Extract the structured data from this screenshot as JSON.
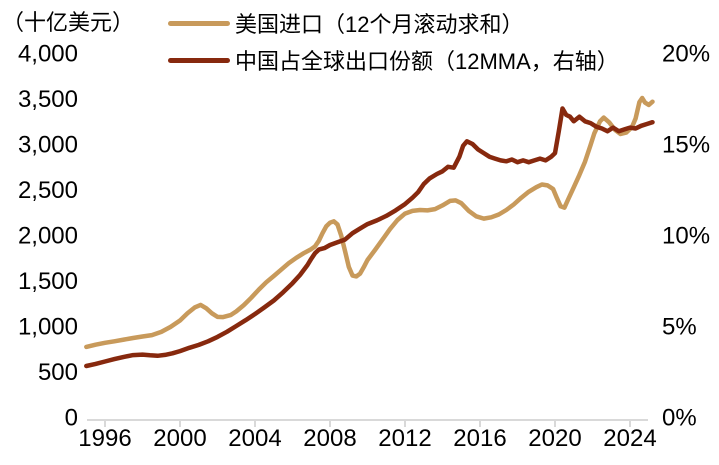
{
  "chart_data": {
    "type": "line",
    "unit_label": "（十亿美元）",
    "legend_position": "top-left",
    "grid": false,
    "x_axis": {
      "range": [
        1995,
        2025.3
      ],
      "tick_values": [
        1996,
        2000,
        2004,
        2008,
        2012,
        2016,
        2020,
        2024
      ],
      "tick_labels": [
        "1996",
        "2000",
        "2004",
        "2008",
        "2012",
        "2016",
        "2020",
        "2024"
      ]
    },
    "left_axis": {
      "range": [
        0,
        4000
      ],
      "tick_values": [
        0,
        500,
        1000,
        1500,
        2000,
        2500,
        3000,
        3500,
        4000
      ],
      "tick_labels": [
        "0",
        "500",
        "1,000",
        "1,500",
        "2,000",
        "2,500",
        "3,000",
        "3,500",
        "4,000"
      ]
    },
    "right_axis": {
      "range": [
        0,
        20
      ],
      "tick_values": [
        0,
        5,
        10,
        15,
        20
      ],
      "tick_labels": [
        "0%",
        "5%",
        "10%",
        "15%",
        "20%"
      ]
    },
    "colors": {
      "us_imports_line": "#C89A5B",
      "china_share_line": "#87290E",
      "axis_line": "#D9D9D9",
      "text": "#000000"
    },
    "series": [
      {
        "name": "美国进口（12个月滚动求和）",
        "axis": "left",
        "color_key": "us_imports_line",
        "points": [
          [
            1995,
            770
          ],
          [
            1995.5,
            795
          ],
          [
            1996,
            815
          ],
          [
            1996.5,
            832
          ],
          [
            1997,
            850
          ],
          [
            1997.5,
            868
          ],
          [
            1998,
            885
          ],
          [
            1998.5,
            900
          ],
          [
            1999,
            935
          ],
          [
            1999.5,
            990
          ],
          [
            2000,
            1060
          ],
          [
            2000.4,
            1140
          ],
          [
            2000.8,
            1205
          ],
          [
            2001.1,
            1232
          ],
          [
            2001.4,
            1195
          ],
          [
            2001.7,
            1140
          ],
          [
            2002,
            1100
          ],
          [
            2002.3,
            1098
          ],
          [
            2002.7,
            1120
          ],
          [
            2003,
            1160
          ],
          [
            2003.4,
            1230
          ],
          [
            2003.8,
            1310
          ],
          [
            2004.2,
            1400
          ],
          [
            2004.6,
            1480
          ],
          [
            2005,
            1550
          ],
          [
            2005.4,
            1620
          ],
          [
            2005.8,
            1690
          ],
          [
            2006.2,
            1750
          ],
          [
            2006.6,
            1800
          ],
          [
            2007,
            1845
          ],
          [
            2007.2,
            1875
          ],
          [
            2007.4,
            1935
          ],
          [
            2007.6,
            2020
          ],
          [
            2007.8,
            2095
          ],
          [
            2008,
            2135
          ],
          [
            2008.2,
            2150
          ],
          [
            2008.4,
            2115
          ],
          [
            2008.6,
            1995
          ],
          [
            2008.8,
            1825
          ],
          [
            2009,
            1650
          ],
          [
            2009.2,
            1555
          ],
          [
            2009.4,
            1545
          ],
          [
            2009.6,
            1575
          ],
          [
            2009.8,
            1645
          ],
          [
            2010,
            1725
          ],
          [
            2010.4,
            1835
          ],
          [
            2010.8,
            1950
          ],
          [
            2011.2,
            2065
          ],
          [
            2011.6,
            2165
          ],
          [
            2012,
            2235
          ],
          [
            2012.4,
            2265
          ],
          [
            2012.8,
            2275
          ],
          [
            2013.2,
            2270
          ],
          [
            2013.6,
            2285
          ],
          [
            2014,
            2325
          ],
          [
            2014.4,
            2375
          ],
          [
            2014.7,
            2380
          ],
          [
            2015,
            2350
          ],
          [
            2015.4,
            2265
          ],
          [
            2015.8,
            2205
          ],
          [
            2016.2,
            2180
          ],
          [
            2016.6,
            2195
          ],
          [
            2017,
            2225
          ],
          [
            2017.4,
            2275
          ],
          [
            2017.8,
            2335
          ],
          [
            2018.2,
            2410
          ],
          [
            2018.6,
            2475
          ],
          [
            2019,
            2525
          ],
          [
            2019.3,
            2555
          ],
          [
            2019.6,
            2545
          ],
          [
            2019.9,
            2505
          ],
          [
            2020.1,
            2405
          ],
          [
            2020.3,
            2315
          ],
          [
            2020.5,
            2300
          ],
          [
            2020.7,
            2390
          ],
          [
            2021,
            2525
          ],
          [
            2021.3,
            2660
          ],
          [
            2021.6,
            2805
          ],
          [
            2021.9,
            2990
          ],
          [
            2022.1,
            3120
          ],
          [
            2022.4,
            3250
          ],
          [
            2022.6,
            3290
          ],
          [
            2022.9,
            3235
          ],
          [
            2023.2,
            3155
          ],
          [
            2023.5,
            3110
          ],
          [
            2023.8,
            3125
          ],
          [
            2024.1,
            3185
          ],
          [
            2024.3,
            3280
          ],
          [
            2024.5,
            3460
          ],
          [
            2024.65,
            3505
          ],
          [
            2024.8,
            3455
          ],
          [
            2025,
            3430
          ],
          [
            2025.2,
            3465
          ]
        ]
      },
      {
        "name": "中国占全球出口份额（12MMA，右轴）",
        "axis": "right",
        "color_key": "china_share_line",
        "points": [
          [
            1995,
            2.8
          ],
          [
            1995.5,
            2.92
          ],
          [
            1996,
            3.05
          ],
          [
            1996.5,
            3.18
          ],
          [
            1997,
            3.3
          ],
          [
            1997.5,
            3.4
          ],
          [
            1998,
            3.43
          ],
          [
            1998.4,
            3.39
          ],
          [
            1998.8,
            3.36
          ],
          [
            1999.2,
            3.41
          ],
          [
            1999.6,
            3.5
          ],
          [
            2000,
            3.62
          ],
          [
            2000.5,
            3.8
          ],
          [
            2001,
            3.96
          ],
          [
            2001.5,
            4.16
          ],
          [
            2002,
            4.4
          ],
          [
            2002.5,
            4.68
          ],
          [
            2003,
            5.0
          ],
          [
            2003.5,
            5.32
          ],
          [
            2004,
            5.66
          ],
          [
            2004.5,
            6.02
          ],
          [
            2005,
            6.4
          ],
          [
            2005.5,
            6.85
          ],
          [
            2006,
            7.35
          ],
          [
            2006.4,
            7.8
          ],
          [
            2006.8,
            8.35
          ],
          [
            2007,
            8.7
          ],
          [
            2007.2,
            9.0
          ],
          [
            2007.4,
            9.2
          ],
          [
            2007.7,
            9.28
          ],
          [
            2008,
            9.45
          ],
          [
            2008.4,
            9.6
          ],
          [
            2008.8,
            9.75
          ],
          [
            2009.2,
            10.1
          ],
          [
            2009.6,
            10.35
          ],
          [
            2010,
            10.6
          ],
          [
            2010.5,
            10.8
          ],
          [
            2011,
            11.05
          ],
          [
            2011.5,
            11.35
          ],
          [
            2012,
            11.7
          ],
          [
            2012.4,
            12.05
          ],
          [
            2012.7,
            12.35
          ],
          [
            2013,
            12.8
          ],
          [
            2013.3,
            13.1
          ],
          [
            2013.7,
            13.35
          ],
          [
            2014,
            13.5
          ],
          [
            2014.3,
            13.75
          ],
          [
            2014.6,
            13.7
          ],
          [
            2014.9,
            14.3
          ],
          [
            2015.1,
            14.9
          ],
          [
            2015.3,
            15.15
          ],
          [
            2015.6,
            15.0
          ],
          [
            2015.9,
            14.7
          ],
          [
            2016.2,
            14.5
          ],
          [
            2016.5,
            14.3
          ],
          [
            2016.8,
            14.2
          ],
          [
            2017.1,
            14.1
          ],
          [
            2017.4,
            14.05
          ],
          [
            2017.7,
            14.15
          ],
          [
            2018,
            14.0
          ],
          [
            2018.3,
            14.1
          ],
          [
            2018.6,
            14.0
          ],
          [
            2018.9,
            14.1
          ],
          [
            2019.2,
            14.2
          ],
          [
            2019.5,
            14.1
          ],
          [
            2019.8,
            14.3
          ],
          [
            2020,
            14.5
          ],
          [
            2020.2,
            15.7
          ],
          [
            2020.4,
            16.95
          ],
          [
            2020.6,
            16.6
          ],
          [
            2020.8,
            16.5
          ],
          [
            2021,
            16.25
          ],
          [
            2021.3,
            16.5
          ],
          [
            2021.6,
            16.25
          ],
          [
            2021.9,
            16.15
          ],
          [
            2022.2,
            15.95
          ],
          [
            2022.5,
            15.85
          ],
          [
            2022.8,
            15.7
          ],
          [
            2023.1,
            15.9
          ],
          [
            2023.4,
            15.7
          ],
          [
            2023.7,
            15.8
          ],
          [
            2024,
            15.9
          ],
          [
            2024.3,
            15.85
          ],
          [
            2024.6,
            16.0
          ],
          [
            2024.9,
            16.1
          ],
          [
            2025.2,
            16.2
          ]
        ]
      }
    ]
  }
}
